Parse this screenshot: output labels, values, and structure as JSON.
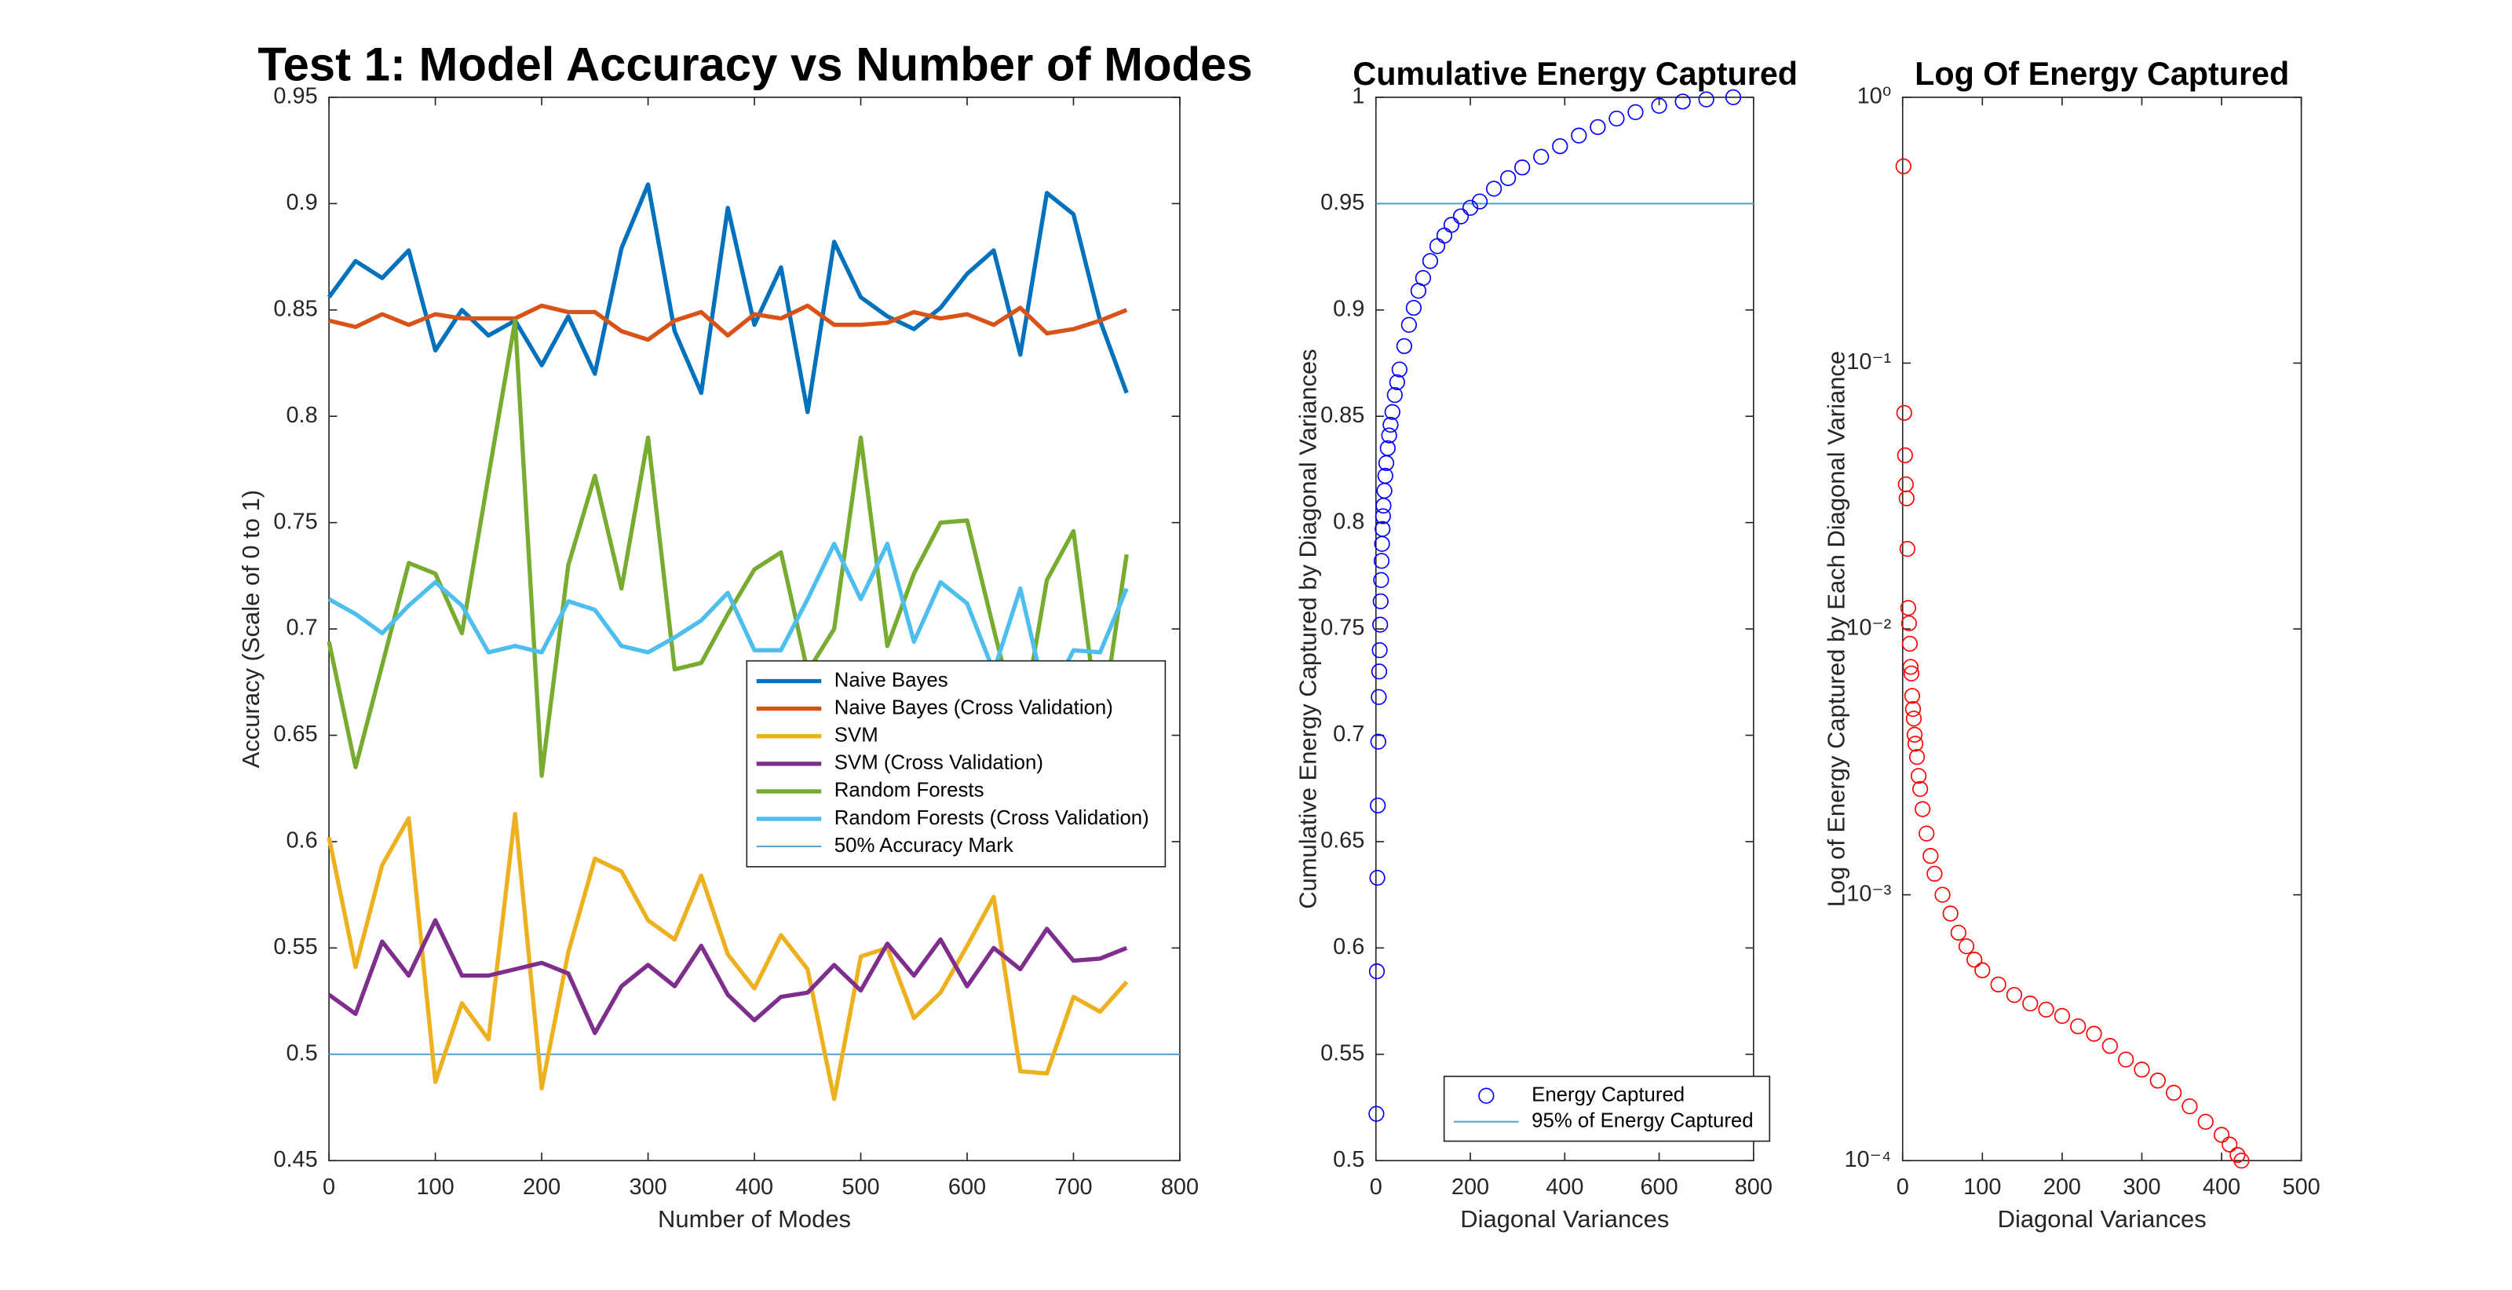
{
  "chart_data": [
    {
      "type": "line",
      "title": "Test 1: Model Accuracy vs Number of Modes",
      "xlabel": "Number of Modes",
      "ylabel": "Accuracy (Scale of 0 to 1)",
      "x": [
        0,
        25,
        50,
        75,
        100,
        125,
        150,
        175,
        200,
        225,
        250,
        275,
        300,
        325,
        350,
        375,
        400,
        425,
        450,
        475,
        500,
        525,
        550,
        575,
        600,
        625,
        650,
        675,
        700,
        725,
        750
      ],
      "series": [
        {
          "name": "Naive Bayes",
          "color": "#0072BD",
          "values": [
            0.856,
            0.873,
            0.865,
            0.878,
            0.831,
            0.85,
            0.838,
            0.845,
            0.824,
            0.847,
            0.82,
            0.879,
            0.909,
            0.84,
            0.811,
            0.898,
            0.843,
            0.87,
            0.802,
            0.882,
            0.856,
            0.847,
            0.841,
            0.851,
            0.867,
            0.878,
            0.829,
            0.905,
            0.895,
            0.845,
            0.811
          ]
        },
        {
          "name": "Naive Bayes (Cross Validation)",
          "color": "#D95319",
          "values": [
            0.845,
            0.842,
            0.848,
            0.843,
            0.848,
            0.846,
            0.846,
            0.846,
            0.852,
            0.849,
            0.849,
            0.84,
            0.836,
            0.845,
            0.849,
            0.838,
            0.848,
            0.846,
            0.852,
            0.843,
            0.843,
            0.844,
            0.849,
            0.846,
            0.848,
            0.843,
            0.851,
            0.839,
            0.841,
            0.845,
            0.85
          ]
        },
        {
          "name": "SVM",
          "color": "#EDB120",
          "values": [
            0.602,
            0.541,
            0.589,
            0.611,
            0.487,
            0.524,
            0.507,
            0.613,
            0.484,
            0.548,
            0.592,
            0.586,
            0.563,
            0.554,
            0.584,
            0.547,
            0.531,
            0.556,
            0.54,
            0.479,
            0.546,
            0.55,
            0.517,
            0.529,
            0.551,
            0.574,
            0.492,
            0.491,
            0.527,
            0.52,
            0.534
          ]
        },
        {
          "name": "SVM (Cross Validation)",
          "color": "#7E2F8E",
          "values": [
            0.528,
            0.519,
            0.553,
            0.537,
            0.563,
            0.537,
            0.537,
            0.54,
            0.543,
            0.538,
            0.51,
            0.532,
            0.542,
            0.532,
            0.551,
            0.528,
            0.516,
            0.527,
            0.529,
            0.542,
            0.53,
            0.552,
            0.537,
            0.554,
            0.532,
            0.55,
            0.54,
            0.559,
            0.544,
            0.545,
            0.55
          ]
        },
        {
          "name": "Random Forests",
          "color": "#77AC30",
          "values": [
            0.694,
            0.635,
            0.683,
            0.731,
            0.726,
            0.698,
            0.772,
            0.845,
            0.631,
            0.73,
            0.772,
            0.719,
            0.79,
            0.681,
            0.684,
            0.707,
            0.728,
            0.736,
            0.68,
            0.7,
            0.79,
            0.692,
            0.726,
            0.75,
            0.751,
            0.7,
            0.65,
            0.723,
            0.746,
            0.65,
            0.735
          ]
        },
        {
          "name": "Random Forests (Cross Validation)",
          "color": "#4DBEEE",
          "values": [
            0.714,
            0.707,
            0.698,
            0.711,
            0.722,
            0.711,
            0.689,
            0.692,
            0.689,
            0.713,
            0.709,
            0.692,
            0.689,
            0.696,
            0.704,
            0.717,
            0.69,
            0.69,
            0.714,
            0.74,
            0.714,
            0.74,
            0.694,
            0.722,
            0.712,
            0.68,
            0.719,
            0.665,
            0.69,
            0.689,
            0.719
          ]
        }
      ],
      "reference_lines": [
        {
          "name": "50% Accuracy Mark",
          "color": "#5BA3CF",
          "y": 0.5
        }
      ],
      "xlim": [
        0,
        800
      ],
      "ylim": [
        0.45,
        0.95
      ],
      "xticks": [
        0,
        100,
        200,
        300,
        400,
        500,
        600,
        700,
        800
      ],
      "yticks": [
        0.45,
        0.5,
        0.55,
        0.6,
        0.65,
        0.7,
        0.75,
        0.8,
        0.85,
        0.9,
        0.95
      ],
      "legend": "east"
    },
    {
      "type": "scatter",
      "title": "Cumulative Energy Captured",
      "xlabel": "Diagonal Variances",
      "ylabel": "Cumulative Energy Captured by Diagonal Variances",
      "series": [
        {
          "name": "Energy Captured",
          "color": "#0000FF",
          "x": [
            1,
            2,
            3,
            4,
            5,
            6,
            7,
            8,
            9,
            10,
            11,
            12,
            13,
            14,
            15,
            16,
            18,
            20,
            22,
            25,
            28,
            31,
            35,
            40,
            45,
            50,
            60,
            70,
            80,
            90,
            100,
            115,
            130,
            145,
            160,
            180,
            200,
            220,
            250,
            280,
            310,
            350,
            390,
            430,
            470,
            510,
            550,
            600,
            650,
            700,
            757
          ],
          "values": [
            0.522,
            0.589,
            0.633,
            0.667,
            0.697,
            0.718,
            0.73,
            0.74,
            0.752,
            0.763,
            0.773,
            0.782,
            0.79,
            0.797,
            0.803,
            0.808,
            0.815,
            0.822,
            0.828,
            0.835,
            0.841,
            0.846,
            0.852,
            0.86,
            0.866,
            0.872,
            0.883,
            0.893,
            0.901,
            0.909,
            0.915,
            0.923,
            0.93,
            0.935,
            0.94,
            0.944,
            0.948,
            0.951,
            0.957,
            0.962,
            0.967,
            0.972,
            0.977,
            0.982,
            0.986,
            0.99,
            0.993,
            0.996,
            0.998,
            0.999,
            1
          ]
        }
      ],
      "reference_lines": [
        {
          "name": "95% of Energy Captured",
          "color": "#5BA3CF",
          "y": 0.95
        }
      ],
      "xlim": [
        0,
        800
      ],
      "ylim": [
        0.5,
        1
      ],
      "xticks": [
        0,
        200,
        400,
        600,
        800
      ],
      "yticks": [
        0.5,
        0.55,
        0.6,
        0.65,
        0.7,
        0.75,
        0.8,
        0.85,
        0.9,
        0.95,
        1
      ],
      "legend": "south"
    },
    {
      "type": "scatter",
      "title": "Log Of Energy Captured",
      "xlabel": "Diagonal Variances",
      "ylabel": "Log of Energy Captured by Each Diagonal Variance",
      "yscale": "log",
      "series": [
        {
          "color": "#FF0000",
          "x": [
            1,
            2,
            3,
            4,
            5,
            6,
            7,
            8,
            9,
            10,
            11,
            12,
            13,
            14,
            15,
            16,
            18,
            20,
            22,
            25,
            30,
            35,
            40,
            50,
            60,
            70,
            80,
            90,
            100,
            120,
            140,
            160,
            180,
            200,
            220,
            240,
            260,
            280,
            300,
            320,
            340,
            360,
            380,
            400,
            410,
            420,
            425
          ],
          "values": [
            0.55,
            0.065,
            0.045,
            0.035,
            0.031,
            0.02,
            0.012,
            0.0105,
            0.0088,
            0.0072,
            0.0068,
            0.0056,
            0.005,
            0.0046,
            0.004,
            0.0037,
            0.0033,
            0.0028,
            0.0025,
            0.0021,
            0.0017,
            0.0014,
            0.0012,
            0.001,
            0.00085,
            0.00072,
            0.00064,
            0.00057,
            0.00052,
            0.00046,
            0.00042,
            0.00039,
            0.00037,
            0.00035,
            0.00032,
            0.0003,
            0.00027,
            0.00024,
            0.00022,
            0.0002,
            0.00018,
            0.00016,
            0.00014,
            0.000125,
            0.000115,
            0.000105,
            0.0001
          ]
        }
      ],
      "xlim": [
        0,
        500
      ],
      "ylim": [
        0.0001,
        1
      ],
      "xticks": [
        0,
        100,
        200,
        300,
        400,
        500
      ],
      "yticks": [
        {
          "value": 0.0001,
          "label": "10⁻⁴"
        },
        {
          "value": 0.001,
          "label": "10⁻³"
        },
        {
          "value": 0.01,
          "label": "10⁻²"
        },
        {
          "value": 0.1,
          "label": "10⁻¹"
        },
        {
          "value": 1,
          "label": "10⁰"
        }
      ]
    }
  ]
}
